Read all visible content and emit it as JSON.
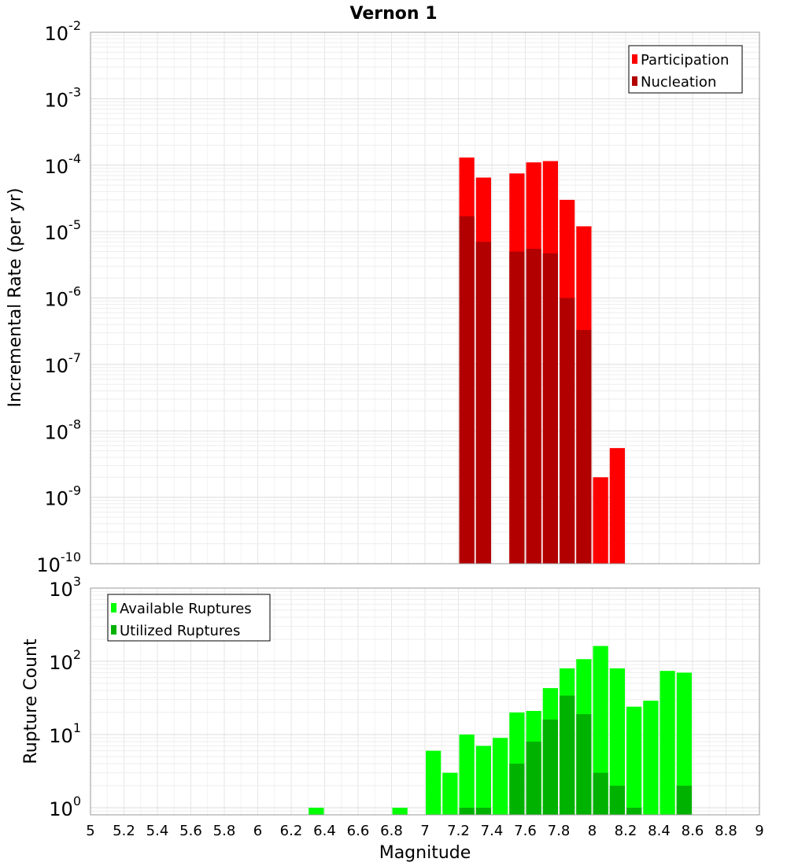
{
  "chart_data": [
    {
      "type": "bar",
      "title": "Vernon 1",
      "ylabel": "Incremental Rate (per yr)",
      "xlabel": "",
      "yscale": "log",
      "ylim": [
        1e-10,
        0.01
      ],
      "xlim": [
        5,
        9
      ],
      "bin_width": 0.1,
      "y_ticks": [
        {
          "base": "10",
          "exp": "-2"
        },
        {
          "base": "10",
          "exp": "-3"
        },
        {
          "base": "10",
          "exp": "-4"
        },
        {
          "base": "10",
          "exp": "-5"
        },
        {
          "base": "10",
          "exp": "-6"
        },
        {
          "base": "10",
          "exp": "-7"
        },
        {
          "base": "10",
          "exp": "-8"
        },
        {
          "base": "10",
          "exp": "-9"
        },
        {
          "base": "10",
          "exp": "-10"
        }
      ],
      "legend": {
        "position": "top-right",
        "entries": [
          "Participation",
          "Nucleation"
        ]
      },
      "series": [
        {
          "name": "Participation",
          "color": "#ff0000",
          "points": [
            {
              "x": 7.25,
              "y": 0.00013
            },
            {
              "x": 7.35,
              "y": 6.5e-05
            },
            {
              "x": 7.55,
              "y": 7.5e-05
            },
            {
              "x": 7.65,
              "y": 0.00011
            },
            {
              "x": 7.75,
              "y": 0.000115
            },
            {
              "x": 7.85,
              "y": 3e-05
            },
            {
              "x": 7.95,
              "y": 1.2e-05
            },
            {
              "x": 8.05,
              "y": 2e-09
            },
            {
              "x": 8.15,
              "y": 5.5e-09
            }
          ]
        },
        {
          "name": "Nucleation",
          "color": "#b20000",
          "points": [
            {
              "x": 7.25,
              "y": 1.7e-05
            },
            {
              "x": 7.35,
              "y": 7e-06
            },
            {
              "x": 7.55,
              "y": 5e-06
            },
            {
              "x": 7.65,
              "y": 5.5e-06
            },
            {
              "x": 7.75,
              "y": 4.7e-06
            },
            {
              "x": 7.85,
              "y": 1e-06
            },
            {
              "x": 7.95,
              "y": 3.3e-07
            }
          ]
        }
      ]
    },
    {
      "type": "bar",
      "title": "",
      "ylabel": "Rupture Count",
      "xlabel": "Magnitude",
      "yscale": "log",
      "ylim": [
        0.8,
        1000
      ],
      "xlim": [
        5,
        9
      ],
      "bin_width": 0.1,
      "y_ticks": [
        {
          "base": "10",
          "exp": "3",
          "value": 1000
        },
        {
          "base": "10",
          "exp": "2",
          "value": 100
        },
        {
          "base": "10",
          "exp": "1",
          "value": 10
        },
        {
          "base": "10",
          "exp": "0",
          "value": 1
        }
      ],
      "x_ticks": [
        "5",
        "5.2",
        "5.4",
        "5.6",
        "5.8",
        "6",
        "6.2",
        "6.4",
        "6.6",
        "6.8",
        "7",
        "7.2",
        "7.4",
        "7.6",
        "7.8",
        "8",
        "8.2",
        "8.4",
        "8.6",
        "8.8",
        "9"
      ],
      "legend": {
        "position": "top-left",
        "entries": [
          "Available Ruptures",
          "Utilized Ruptures"
        ]
      },
      "series": [
        {
          "name": "Available Ruptures",
          "color": "#00ff00",
          "points": [
            {
              "x": 6.35,
              "y": 1
            },
            {
              "x": 6.85,
              "y": 1
            },
            {
              "x": 7.05,
              "y": 6
            },
            {
              "x": 7.15,
              "y": 3
            },
            {
              "x": 7.25,
              "y": 10
            },
            {
              "x": 7.35,
              "y": 7
            },
            {
              "x": 7.45,
              "y": 9
            },
            {
              "x": 7.55,
              "y": 20
            },
            {
              "x": 7.65,
              "y": 21
            },
            {
              "x": 7.75,
              "y": 43
            },
            {
              "x": 7.85,
              "y": 80
            },
            {
              "x": 7.95,
              "y": 107
            },
            {
              "x": 8.05,
              "y": 162
            },
            {
              "x": 8.15,
              "y": 80
            },
            {
              "x": 8.25,
              "y": 24
            },
            {
              "x": 8.35,
              "y": 29
            },
            {
              "x": 8.45,
              "y": 74
            },
            {
              "x": 8.55,
              "y": 70
            }
          ]
        },
        {
          "name": "Utilized Ruptures",
          "color": "#00b200",
          "points": [
            {
              "x": 7.25,
              "y": 1
            },
            {
              "x": 7.35,
              "y": 1
            },
            {
              "x": 7.55,
              "y": 4
            },
            {
              "x": 7.65,
              "y": 8
            },
            {
              "x": 7.75,
              "y": 16
            },
            {
              "x": 7.85,
              "y": 34
            },
            {
              "x": 7.95,
              "y": 19
            },
            {
              "x": 8.05,
              "y": 3
            },
            {
              "x": 8.15,
              "y": 2
            },
            {
              "x": 8.25,
              "y": 1
            },
            {
              "x": 8.55,
              "y": 2
            }
          ]
        }
      ]
    }
  ]
}
